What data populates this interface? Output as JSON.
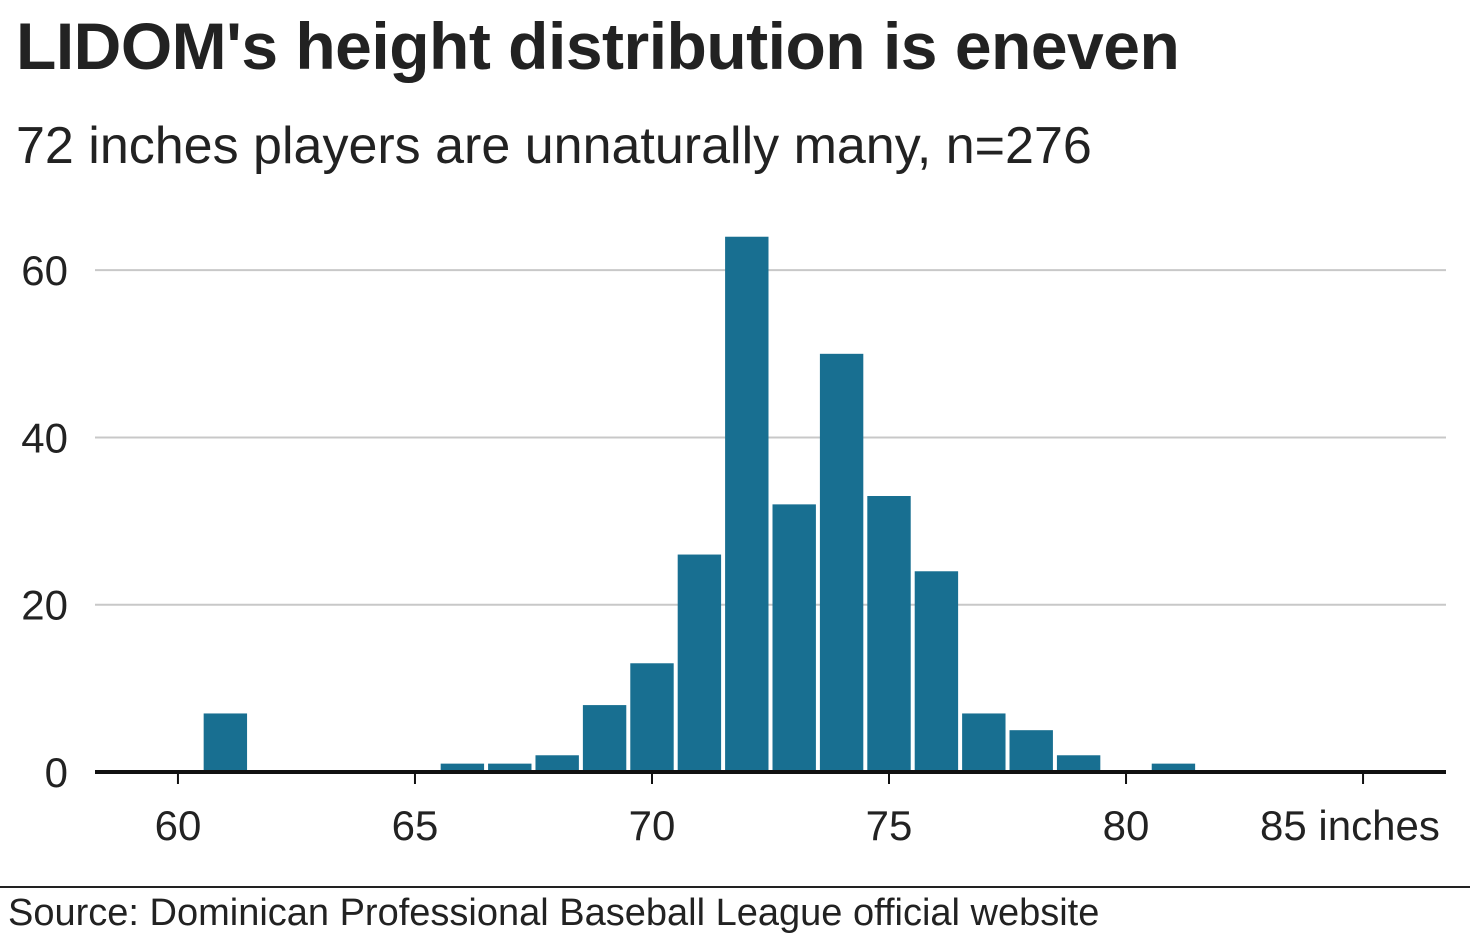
{
  "header": {
    "title": "LIDOM's height distribution is eneven",
    "subtitle": "72 inches players are unnaturally many, n=276"
  },
  "footer": {
    "source": "Source: Dominican Professional Baseball League official website"
  },
  "colors": {
    "bar": "#186f91",
    "grid": "#c8c8c8",
    "axis": "#111111",
    "text": "#222222"
  },
  "chart_data": {
    "type": "bar",
    "title": "LIDOM's height distribution is eneven",
    "subtitle": "72 inches players are unnaturally many, n=276",
    "xlabel": "inches",
    "ylabel": "",
    "x": [
      61,
      66,
      67,
      68,
      69,
      70,
      71,
      72,
      73,
      74,
      75,
      76,
      77,
      78,
      79,
      81
    ],
    "values": [
      7,
      1,
      1,
      2,
      8,
      13,
      26,
      64,
      32,
      50,
      33,
      24,
      7,
      5,
      2,
      1
    ],
    "xlim": [
      58.25,
      86.75
    ],
    "ylim": [
      0,
      66
    ],
    "x_ticks": [
      60,
      65,
      70,
      75,
      80,
      85
    ],
    "x_tick_labels": [
      "60",
      "65",
      "70",
      "75",
      "80",
      "85 inches"
    ],
    "y_ticks": [
      0,
      20,
      40,
      60
    ],
    "y_tick_labels": [
      "0",
      "20",
      "40",
      "60"
    ],
    "grid": true,
    "legend": "none"
  }
}
